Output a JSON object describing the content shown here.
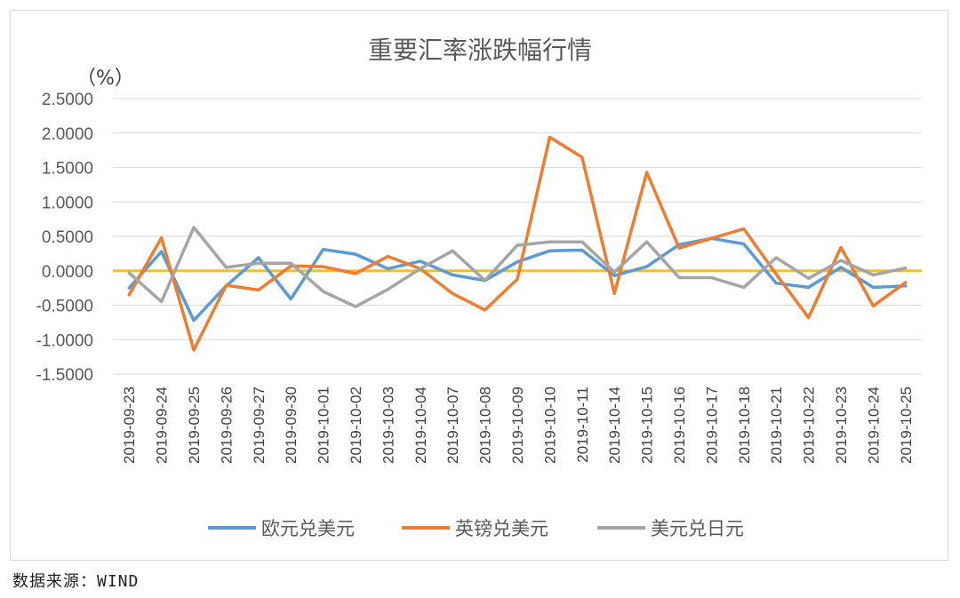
{
  "chart_data": {
    "type": "line",
    "title": "重要汇率涨跌幅行情",
    "ylabel": "（%）",
    "xlabel": "",
    "ylim": [
      -1.5,
      2.5
    ],
    "y_ticks": [
      "2.5000",
      "2.0000",
      "1.5000",
      "1.0000",
      "0.5000",
      "0.0000",
      "-0.5000",
      "-1.0000",
      "-1.5000"
    ],
    "y_tick_values": [
      2.5,
      2.0,
      1.5,
      1.0,
      0.5,
      0.0,
      -0.5,
      -1.0,
      -1.5
    ],
    "grid": true,
    "legend_position": "bottom",
    "categories": [
      "2019-09-23",
      "2019-09-24",
      "2019-09-25",
      "2019-09-26",
      "2019-09-27",
      "2019-09-30",
      "2019-10-01",
      "2019-10-02",
      "2019-10-03",
      "2019-10-04",
      "2019-10-07",
      "2019-10-08",
      "2019-10-09",
      "2019-10-10",
      "2019-10-11",
      "2019-10-14",
      "2019-10-15",
      "2019-10-16",
      "2019-10-17",
      "2019-10-18",
      "2019-10-21",
      "2019-10-22",
      "2019-10-23",
      "2019-10-24",
      "2019-10-25"
    ],
    "series": [
      {
        "name": "欧元兑美元",
        "color": "#5b9bd5",
        "values": [
          -0.25,
          0.28,
          -0.72,
          -0.22,
          0.19,
          -0.41,
          0.31,
          0.24,
          0.03,
          0.14,
          -0.06,
          -0.14,
          0.13,
          0.29,
          0.3,
          -0.07,
          0.06,
          0.38,
          0.47,
          0.39,
          -0.18,
          -0.24,
          0.05,
          -0.24,
          -0.22
        ]
      },
      {
        "name": "英镑兑美元",
        "color": "#ed7d31",
        "values": [
          -0.35,
          0.48,
          -1.15,
          -0.21,
          -0.28,
          0.07,
          0.06,
          -0.04,
          0.21,
          0.03,
          -0.33,
          -0.57,
          -0.12,
          1.94,
          1.65,
          -0.33,
          1.43,
          0.33,
          0.47,
          0.61,
          -0.05,
          -0.68,
          0.34,
          -0.51,
          -0.17
        ]
      },
      {
        "name": "美元兑日元",
        "color": "#a5a5a5",
        "values": [
          -0.03,
          -0.45,
          0.63,
          0.05,
          0.11,
          0.11,
          -0.3,
          -0.52,
          -0.27,
          0.03,
          0.29,
          -0.14,
          0.37,
          0.42,
          0.42,
          -0.02,
          0.42,
          -0.1,
          -0.1,
          -0.24,
          0.19,
          -0.11,
          0.15,
          -0.06,
          0.04
        ]
      }
    ],
    "zero_line_color": "#ffc000"
  },
  "footer": {
    "source": "数据来源：WIND"
  }
}
